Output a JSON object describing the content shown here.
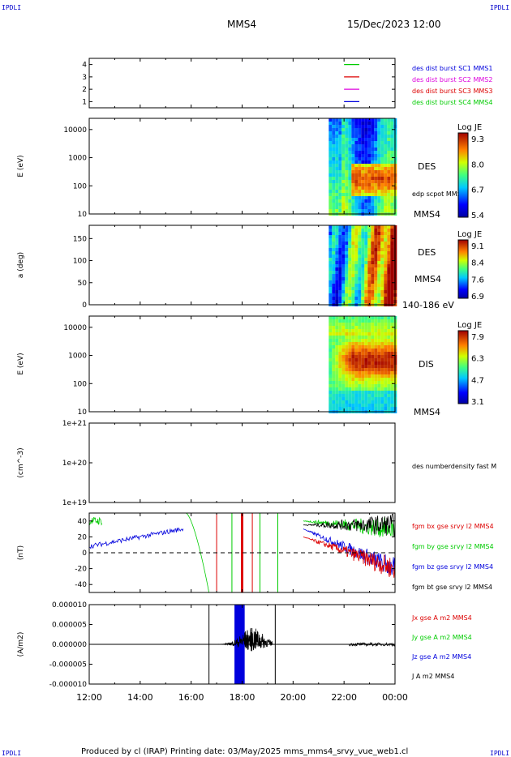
{
  "header": {
    "corner_tl": "IPDLI",
    "corner_tr": "IPDLI",
    "corner_bl": "IPDLI",
    "corner_br": "IPDLI",
    "spacecraft": "MMS4",
    "datetime": "15/Dec/2023 12:00"
  },
  "footer": {
    "text": "Produced by cl (IRAP)   Printing date: 03/May/2025   mms_mms4_srvy_vue_web1.cl"
  },
  "colors": {
    "blue": "#0000dd",
    "magenta": "#dd00dd",
    "red": "#dd0000",
    "green": "#00cc00",
    "black": "#000000"
  },
  "chart_data": [
    {
      "type": "line",
      "panel": "burst",
      "yticks": [
        "1",
        "2",
        "3",
        "4"
      ],
      "ylim": [
        0.5,
        4.5
      ],
      "series": [
        {
          "name": "des dist burst SC1 MMS1",
          "color": "#0000dd",
          "level": 1,
          "x_range": [
            "22:00",
            "22:36"
          ]
        },
        {
          "name": "des dist burst SC2 MMS2",
          "color": "#dd00dd",
          "level": 2,
          "x_range": [
            "22:00",
            "22:36"
          ]
        },
        {
          "name": "des dist burst SC3 MMS3",
          "color": "#dd0000",
          "level": 3,
          "x_range": [
            "22:00",
            "22:36"
          ]
        },
        {
          "name": "des dist burst SC4 MMS4",
          "color": "#00cc00",
          "level": 4,
          "x_range": [
            "22:00",
            "22:36"
          ]
        }
      ]
    },
    {
      "type": "heatmap",
      "panel": "des_energy",
      "ylabel": "E (eV)",
      "yticks": [
        "10",
        "100",
        "1000",
        "10000"
      ],
      "ylim": [
        10,
        25000
      ],
      "log_y": true,
      "label": "DES",
      "spacecraft": "MMS4",
      "overlay": "edp scpot MMS4",
      "colorbar": {
        "title": "Log JE",
        "ticks": [
          "9.3",
          "8.0",
          "6.7",
          "5.4"
        ]
      },
      "data_start": "21:24"
    },
    {
      "type": "heatmap",
      "panel": "des_pitch",
      "ylabel": "a (deg)",
      "yticks": [
        "0",
        "50",
        "100",
        "150"
      ],
      "ylim": [
        0,
        180
      ],
      "label": "DES",
      "spacecraft": "MMS4",
      "energy_range": "140-186 eV",
      "colorbar": {
        "title": "Log JE",
        "ticks": [
          "9.1",
          "8.4",
          "7.6",
          "6.9"
        ]
      },
      "data_start": "21:24"
    },
    {
      "type": "heatmap",
      "panel": "dis_energy",
      "ylabel": "E (eV)",
      "yticks": [
        "10",
        "100",
        "1000",
        "10000"
      ],
      "ylim": [
        10,
        25000
      ],
      "log_y": true,
      "label": "DIS",
      "spacecraft": "MMS4",
      "colorbar": {
        "title": "Log JE",
        "ticks": [
          "7.9",
          "6.3",
          "4.7",
          "3.1"
        ]
      },
      "data_start": "21:24"
    },
    {
      "type": "line",
      "panel": "density",
      "ylabel": "(cm^-3)",
      "yticks": [
        "1e+19",
        "1e+20",
        "1e+21"
      ],
      "series": [
        {
          "name": "des numberdensity fast M",
          "color": "#000000"
        }
      ]
    },
    {
      "type": "line",
      "panel": "fgm",
      "ylabel": "(nT)",
      "yticks": [
        "-40",
        "-20",
        "0",
        "20",
        "40"
      ],
      "ylim": [
        -50,
        50
      ],
      "zero_line": "dashed",
      "series": [
        {
          "name": "fgm bx gse srvy l2 MMS4",
          "color": "#dd0000"
        },
        {
          "name": "fgm by gse srvy l2 MMS4",
          "color": "#00cc00"
        },
        {
          "name": "fgm bz gse srvy l2 MMS4",
          "color": "#0000dd"
        },
        {
          "name": "fgm bt gse srvy l2 MMS4",
          "color": "#000000"
        }
      ]
    },
    {
      "type": "line",
      "panel": "current",
      "ylabel": "(A/m2)",
      "yticks": [
        "-0.000010",
        "-0.000005",
        "0.000000",
        "0.000005",
        "0.000010"
      ],
      "ylim": [
        -1e-05,
        1e-05
      ],
      "series": [
        {
          "name": "Jx gse A m2 MMS4",
          "color": "#dd0000"
        },
        {
          "name": "Jy gse A m2 MMS4",
          "color": "#00cc00"
        },
        {
          "name": "Jz gse A m2 MMS4",
          "color": "#0000dd"
        },
        {
          "name": "J A m2 MMS4",
          "color": "#000000"
        }
      ]
    }
  ],
  "xaxis": {
    "ticks": [
      "12:00",
      "14:00",
      "16:00",
      "18:00",
      "20:00",
      "22:00",
      "00:00"
    ],
    "range_hours": [
      12,
      24
    ]
  }
}
